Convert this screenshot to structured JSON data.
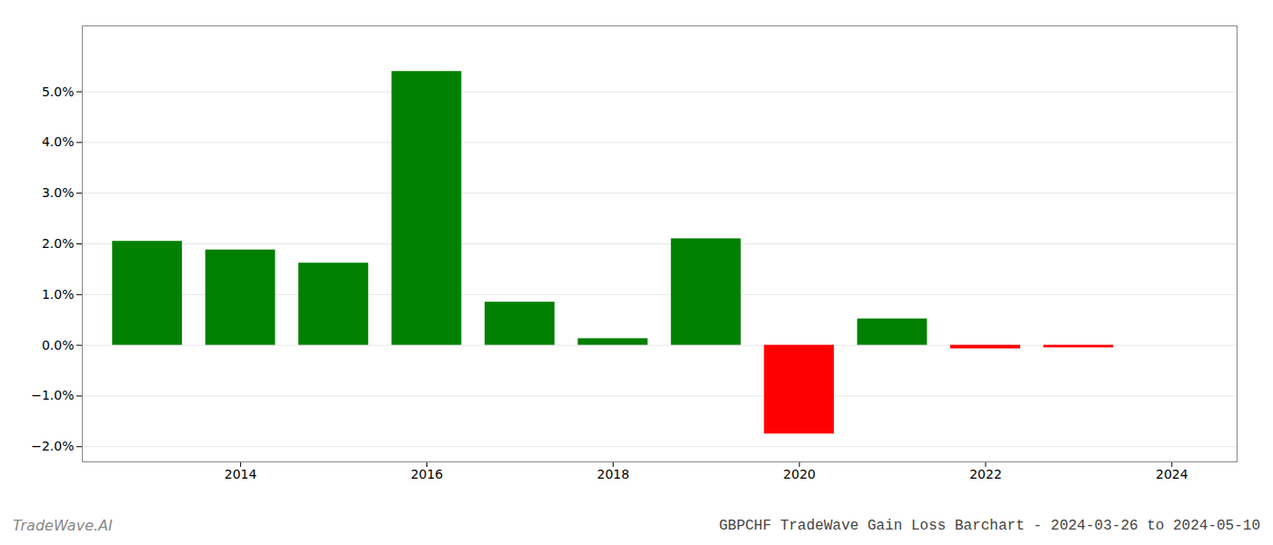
{
  "chart_data": {
    "type": "bar",
    "title": "GBPCHF TradeWave Gain Loss Barchart - 2024-03-26 to 2024-05-10",
    "annotations": [
      "TradeWave.AI"
    ],
    "x": [
      2013,
      2014,
      2015,
      2016,
      2017,
      2018,
      2019,
      2020,
      2021,
      2022,
      2023
    ],
    "values": [
      0.0205,
      0.0188,
      0.0162,
      0.054,
      0.0085,
      0.0013,
      0.021,
      -0.0175,
      0.0052,
      -0.0007,
      -0.0005
    ],
    "colors": [
      "#008000",
      "#008000",
      "#008000",
      "#008000",
      "#008000",
      "#008000",
      "#008000",
      "#ff0000",
      "#008000",
      "#ff0000",
      "#ff0000"
    ],
    "xlim": [
      2012.3,
      2024.7
    ],
    "xticks": [
      2014,
      2016,
      2018,
      2020,
      2022,
      2024
    ],
    "ylim": [
      -0.023,
      0.063
    ],
    "yticks": [
      {
        "value": -0.02,
        "label": "−2.0%"
      },
      {
        "value": -0.01,
        "label": "−1.0%"
      },
      {
        "value": 0.0,
        "label": "0.0%"
      },
      {
        "value": 0.01,
        "label": "1.0%"
      },
      {
        "value": 0.02,
        "label": "2.0%"
      },
      {
        "value": 0.03,
        "label": "3.0%"
      },
      {
        "value": 0.04,
        "label": "4.0%"
      },
      {
        "value": 0.05,
        "label": "5.0%"
      }
    ],
    "grid": true
  }
}
